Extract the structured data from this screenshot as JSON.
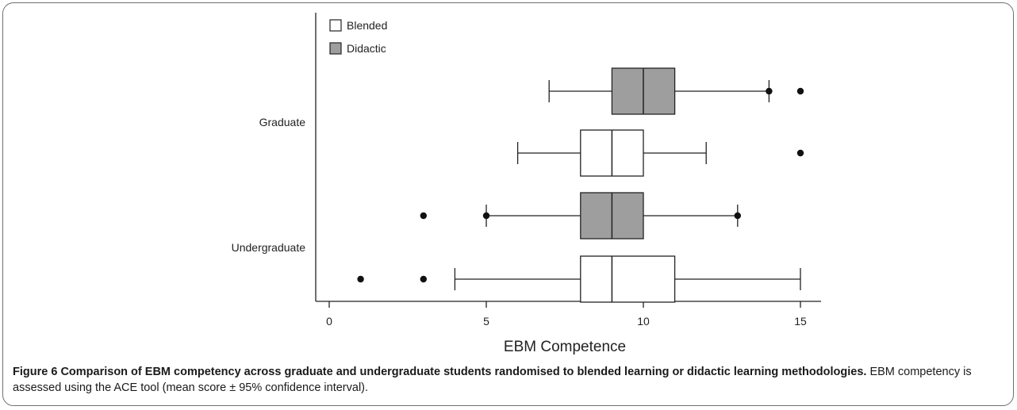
{
  "chart_data": {
    "type": "boxplot",
    "orientation": "horizontal",
    "xlabel": "EBM Competence",
    "xlim": [
      0,
      15
    ],
    "xticks": [
      0,
      5,
      10,
      15
    ],
    "grid": false,
    "legend_position": "top-left",
    "legend": [
      {
        "name": "Blended",
        "color": "#ffffff"
      },
      {
        "name": "Didactic",
        "color": "#9e9e9e"
      }
    ],
    "groups": [
      "Graduate",
      "Undergraduate"
    ],
    "boxes": [
      {
        "group": "Graduate",
        "series": "Didactic",
        "whisker_low": 7,
        "q1": 9,
        "median": 10,
        "q3": 11,
        "whisker_high": 14,
        "outliers": [
          14,
          15
        ]
      },
      {
        "group": "Graduate",
        "series": "Blended",
        "whisker_low": 6,
        "q1": 8,
        "median": 9,
        "q3": 10,
        "whisker_high": 12,
        "outliers": [
          15
        ]
      },
      {
        "group": "Undergraduate",
        "series": "Didactic",
        "whisker_low": 5,
        "q1": 8,
        "median": 9,
        "q3": 10,
        "whisker_high": 13,
        "outliers": [
          3,
          5,
          13
        ]
      },
      {
        "group": "Undergraduate",
        "series": "Blended",
        "whisker_low": 4,
        "q1": 8,
        "median": 9,
        "q3": 11,
        "whisker_high": 15,
        "outliers": [
          1,
          3
        ]
      }
    ]
  },
  "caption": {
    "label": "Figure 6",
    "title": "Comparison of EBM competency across graduate and undergraduate students randomised to blended learning or didactic learning methodologies.",
    "text": "EBM competency is assessed using the ACE tool (mean score ± 95% confidence interval)."
  }
}
